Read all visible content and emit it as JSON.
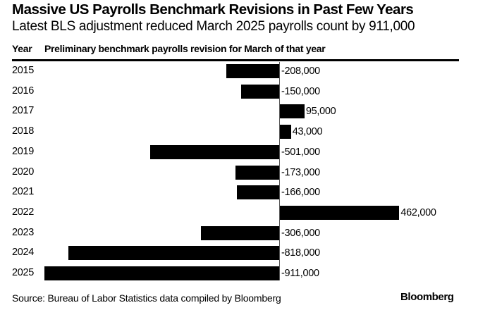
{
  "title": "Massive US Payrolls Benchmark Revisions in Past Few Years",
  "subtitle": "Latest BLS adjustment reduced March 2025 payrolls count by 911,000",
  "headers": {
    "year": "Year",
    "revision": "Preliminary benchmark payrolls revision for March of that year"
  },
  "rows": [
    {
      "year": "2015",
      "label": "-208,000"
    },
    {
      "year": "2016",
      "label": "-150,000"
    },
    {
      "year": "2017",
      "label": "95,000"
    },
    {
      "year": "2018",
      "label": "43,000"
    },
    {
      "year": "2019",
      "label": "-501,000"
    },
    {
      "year": "2020",
      "label": "-173,000"
    },
    {
      "year": "2021",
      "label": "-166,000"
    },
    {
      "year": "2022",
      "label": "462,000"
    },
    {
      "year": "2023",
      "label": "-306,000"
    },
    {
      "year": "2024",
      "label": "-818,000"
    },
    {
      "year": "2025",
      "label": "-911,000"
    }
  ],
  "source": "Source: Bureau of Labor Statistics data compiled by Bloomberg",
  "brand": "Bloomberg",
  "colors": {
    "bar": "#000000",
    "background": "#ffffff"
  },
  "chart_data": {
    "type": "bar",
    "orientation": "horizontal",
    "title": "Massive US Payrolls Benchmark Revisions in Past Few Years",
    "subtitle": "Latest BLS adjustment reduced March 2025 payrolls count by 911,000",
    "xlabel": "Preliminary benchmark payrolls revision for March of that year",
    "ylabel": "Year",
    "categories": [
      "2015",
      "2016",
      "2017",
      "2018",
      "2019",
      "2020",
      "2021",
      "2022",
      "2023",
      "2024",
      "2025"
    ],
    "values": [
      -208000,
      -150000,
      95000,
      43000,
      -501000,
      -173000,
      -166000,
      462000,
      -306000,
      -818000,
      -911000
    ],
    "data_labels": [
      "-208,000",
      "-150,000",
      "95,000",
      "43,000",
      "-501,000",
      "-173,000",
      "-166,000",
      "462,000",
      "-306,000",
      "-818,000",
      "-911,000"
    ],
    "xlim": [
      -911000,
      462000
    ],
    "grid": false,
    "legend": null,
    "source": "Source: Bureau of Labor Statistics data compiled by Bloomberg"
  }
}
